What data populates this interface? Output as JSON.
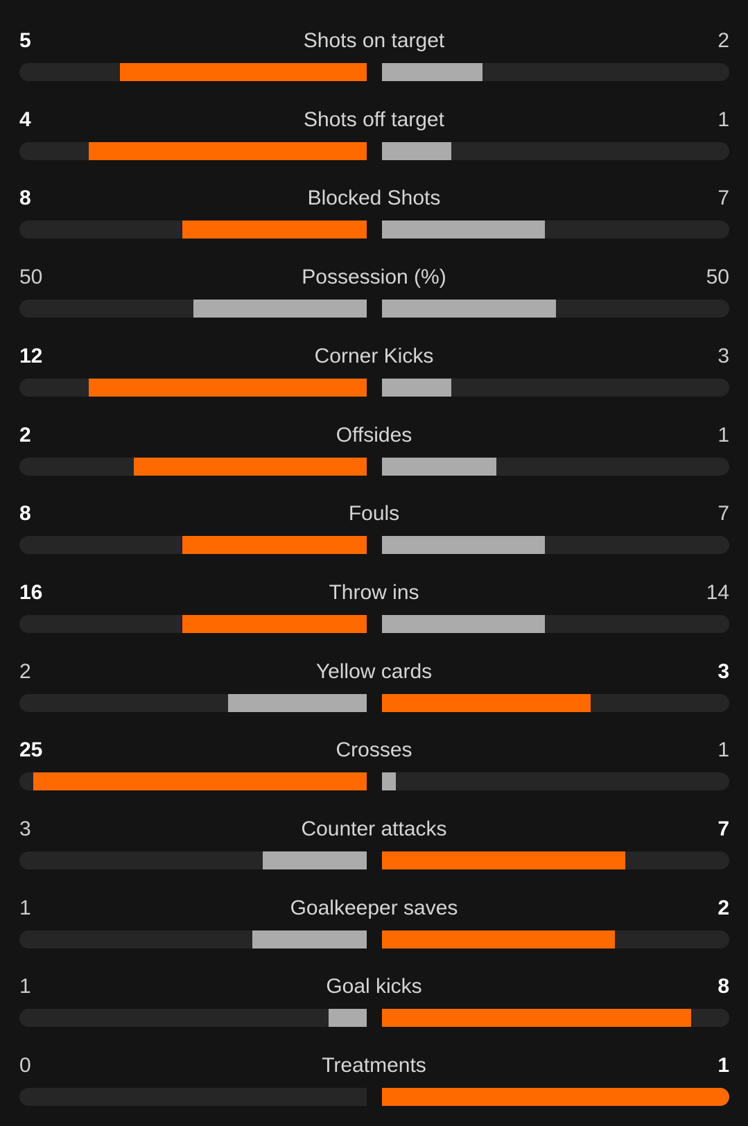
{
  "colors": {
    "background": "#141414",
    "track": "#262626",
    "leader_bar": "#ff6a00",
    "trailer_bar": "#ababab",
    "leader_value": "#ffffff",
    "trailer_value": "#cfcfcf"
  },
  "stats": [
    {
      "label": "Shots on target",
      "home": "5",
      "away": "2",
      "home_fill": 0.71,
      "away_fill": 0.29,
      "leader": "home"
    },
    {
      "label": "Shots off target",
      "home": "4",
      "away": "1",
      "home_fill": 0.8,
      "away_fill": 0.2,
      "leader": "home"
    },
    {
      "label": "Blocked Shots",
      "home": "8",
      "away": "7",
      "home_fill": 0.53,
      "away_fill": 0.47,
      "leader": "home"
    },
    {
      "label": "Possession (%)",
      "home": "50",
      "away": "50",
      "home_fill": 0.5,
      "away_fill": 0.5,
      "leader": "none"
    },
    {
      "label": "Corner Kicks",
      "home": "12",
      "away": "3",
      "home_fill": 0.8,
      "away_fill": 0.2,
      "leader": "home"
    },
    {
      "label": "Offsides",
      "home": "2",
      "away": "1",
      "home_fill": 0.67,
      "away_fill": 0.33,
      "leader": "home"
    },
    {
      "label": "Fouls",
      "home": "8",
      "away": "7",
      "home_fill": 0.53,
      "away_fill": 0.47,
      "leader": "home"
    },
    {
      "label": "Throw ins",
      "home": "16",
      "away": "14",
      "home_fill": 0.53,
      "away_fill": 0.47,
      "leader": "home"
    },
    {
      "label": "Yellow cards",
      "home": "2",
      "away": "3",
      "home_fill": 0.4,
      "away_fill": 0.6,
      "leader": "away"
    },
    {
      "label": "Crosses",
      "home": "25",
      "away": "1",
      "home_fill": 0.96,
      "away_fill": 0.04,
      "leader": "home"
    },
    {
      "label": "Counter attacks",
      "home": "3",
      "away": "7",
      "home_fill": 0.3,
      "away_fill": 0.7,
      "leader": "away"
    },
    {
      "label": "Goalkeeper saves",
      "home": "1",
      "away": "2",
      "home_fill": 0.33,
      "away_fill": 0.67,
      "leader": "away"
    },
    {
      "label": "Goal kicks",
      "home": "1",
      "away": "8",
      "home_fill": 0.11,
      "away_fill": 0.89,
      "leader": "away"
    },
    {
      "label": "Treatments",
      "home": "0",
      "away": "1",
      "home_fill": 0.0,
      "away_fill": 1.0,
      "leader": "away"
    }
  ]
}
